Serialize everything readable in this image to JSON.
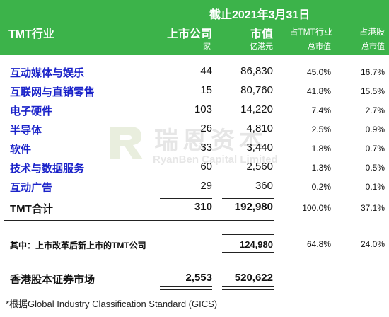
{
  "header": {
    "date": "截止2021年3月31日",
    "sector_label": "TMT行业",
    "count_label": "上市公司",
    "count_unit": "家",
    "mv_label": "市值",
    "mv_unit": "亿港元",
    "pct_tmt_line1": "占TMT行业",
    "pct_tmt_line2": "总市值",
    "pct_hk_line1": "占港股",
    "pct_hk_line2": "总市值",
    "bg_color": "#3cb34a"
  },
  "rows": [
    {
      "name": "互动媒体与娱乐",
      "count": "44",
      "mv": "86,830",
      "pct_tmt": "45.0%",
      "pct_hk": "16.7%"
    },
    {
      "name": "互联网与直销零售",
      "count": "15",
      "mv": "80,760",
      "pct_tmt": "41.8%",
      "pct_hk": "15.5%"
    },
    {
      "name": "电子硬件",
      "count": "103",
      "mv": "14,220",
      "pct_tmt": "7.4%",
      "pct_hk": "2.7%"
    },
    {
      "name": "半导体",
      "count": "26",
      "mv": "4,810",
      "pct_tmt": "2.5%",
      "pct_hk": "0.9%"
    },
    {
      "name": "软件",
      "count": "33",
      "mv": "3,440",
      "pct_tmt": "1.8%",
      "pct_hk": "0.7%"
    },
    {
      "name": "技术与数据服务",
      "count": "60",
      "mv": "2,560",
      "pct_tmt": "1.3%",
      "pct_hk": "0.5%"
    },
    {
      "name": "互动广告",
      "count": "29",
      "mv": "360",
      "pct_tmt": "0.2%",
      "pct_hk": "0.1%"
    }
  ],
  "total": {
    "name": "TMT合计",
    "count": "310",
    "mv": "192,980",
    "pct_tmt": "100.0%",
    "pct_hk": "37.1%"
  },
  "subset": {
    "name": "其中：上市改革后新上市的TMT公司",
    "mv": "124,980",
    "pct_tmt": "64.8%",
    "pct_hk": "24.0%"
  },
  "market": {
    "name": "香港股本证券市场",
    "count": "2,553",
    "mv": "520,622"
  },
  "footnote": "*根据Global Industry Classification Standard (GICS)",
  "watermark": {
    "cn": "瑞恩资本",
    "en": "RyanBen Capital Limited"
  },
  "colors": {
    "accent": "#3cb34a",
    "name_blue": "#1a22c9"
  }
}
